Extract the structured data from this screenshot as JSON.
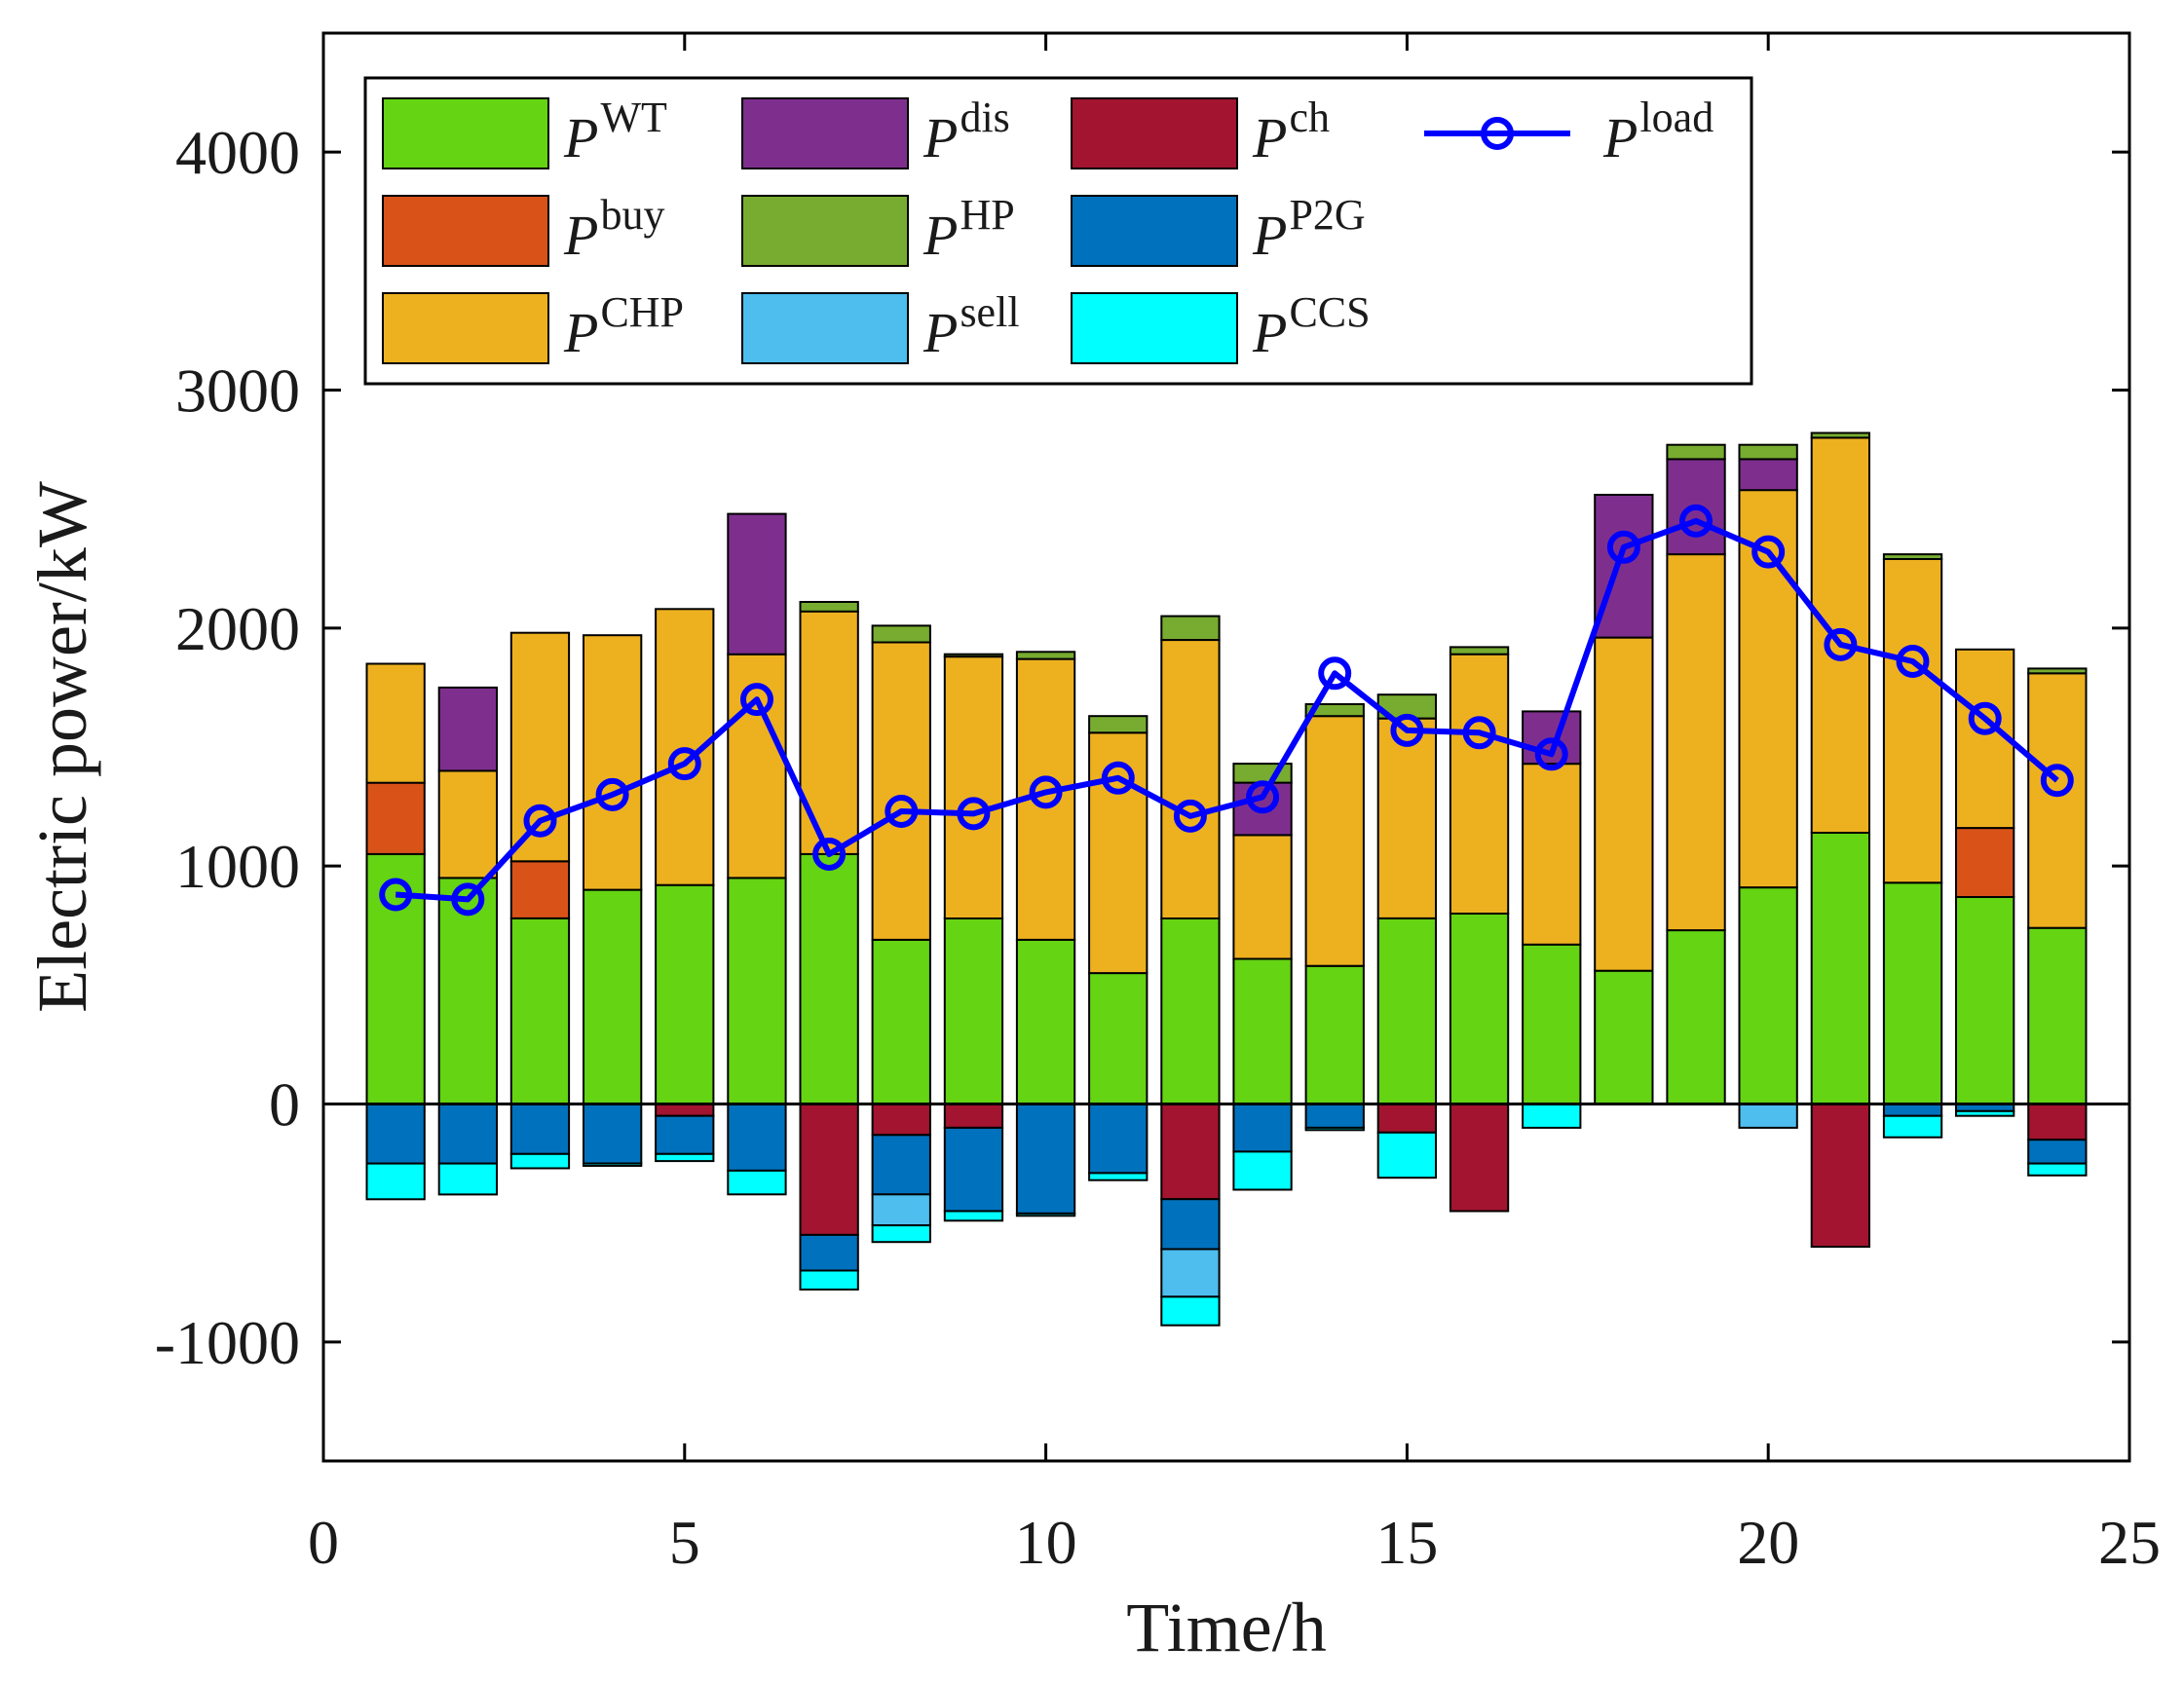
{
  "chart_data": {
    "type": "bar",
    "stacked": true,
    "xlabel": "Time/h",
    "ylabel": "Electric power/kW",
    "xlim": [
      0,
      25
    ],
    "ylim": [
      -1500,
      4500
    ],
    "xticks": [
      0,
      5,
      10,
      15,
      20,
      25
    ],
    "yticks": [
      -1000,
      0,
      1000,
      2000,
      3000,
      4000
    ],
    "grid": false,
    "legend_position": "top-left",
    "categories": [
      1,
      2,
      3,
      4,
      5,
      6,
      7,
      8,
      9,
      10,
      11,
      12,
      13,
      14,
      15,
      16,
      17,
      18,
      19,
      20,
      21,
      22,
      23,
      24
    ],
    "series": [
      {
        "key": "WT",
        "name": "P",
        "sup": "WT",
        "color": "#64D413",
        "position": "positive",
        "values": [
          1050,
          950,
          780,
          900,
          920,
          950,
          1050,
          690,
          780,
          690,
          550,
          780,
          610,
          580,
          780,
          800,
          670,
          560,
          730,
          910,
          1140,
          930,
          870,
          740
        ]
      },
      {
        "key": "buy",
        "name": "P",
        "sup": "buy",
        "color": "#D95319",
        "position": "positive",
        "values": [
          300,
          0,
          240,
          0,
          0,
          0,
          0,
          0,
          0,
          0,
          0,
          0,
          0,
          0,
          0,
          0,
          0,
          0,
          0,
          0,
          0,
          0,
          290,
          0
        ]
      },
      {
        "key": "CHP",
        "name": "P",
        "sup": "CHP",
        "color": "#EDB120",
        "position": "positive",
        "values": [
          500,
          450,
          960,
          1070,
          1160,
          940,
          1020,
          1250,
          1100,
          1180,
          1010,
          1170,
          520,
          1050,
          840,
          1090,
          760,
          1400,
          1580,
          1670,
          1660,
          1360,
          750,
          1070
        ]
      },
      {
        "key": "dis",
        "name": "P",
        "sup": "dis",
        "color": "#7E2F8E",
        "position": "positive",
        "values": [
          0,
          350,
          0,
          0,
          0,
          590,
          0,
          0,
          0,
          0,
          0,
          0,
          220,
          0,
          0,
          0,
          220,
          600,
          400,
          130,
          0,
          0,
          0,
          0
        ]
      },
      {
        "key": "HP",
        "name": "P",
        "sup": "HP",
        "color": "#77AC30",
        "position": "positive",
        "values": [
          0,
          0,
          0,
          0,
          0,
          0,
          40,
          70,
          10,
          30,
          70,
          100,
          80,
          50,
          100,
          30,
          0,
          0,
          60,
          60,
          20,
          20,
          0,
          20
        ]
      },
      {
        "key": "ch",
        "name": "P",
        "sup": "ch",
        "color": "#A2142F",
        "position": "negative",
        "values": [
          0,
          0,
          0,
          0,
          50,
          0,
          550,
          130,
          100,
          0,
          0,
          400,
          0,
          0,
          120,
          450,
          0,
          0,
          0,
          0,
          600,
          0,
          0,
          150
        ]
      },
      {
        "key": "P2G",
        "name": "P",
        "sup": "P2G",
        "color": "#0072BD",
        "position": "negative",
        "values": [
          250,
          250,
          210,
          250,
          160,
          280,
          150,
          250,
          350,
          460,
          290,
          210,
          200,
          100,
          0,
          0,
          0,
          0,
          0,
          0,
          0,
          50,
          30,
          100
        ]
      },
      {
        "key": "sell",
        "name": "P",
        "sup": "sell",
        "color": "#4DBEEE",
        "position": "negative",
        "values": [
          0,
          0,
          0,
          0,
          0,
          0,
          0,
          130,
          0,
          0,
          0,
          200,
          0,
          0,
          0,
          0,
          0,
          0,
          0,
          100,
          0,
          0,
          0,
          0
        ]
      },
      {
        "key": "CCS",
        "name": "P",
        "sup": "CCS",
        "color": "#00FFFF",
        "position": "negative",
        "values": [
          150,
          130,
          60,
          10,
          30,
          100,
          80,
          70,
          40,
          10,
          30,
          120,
          160,
          10,
          190,
          0,
          100,
          0,
          0,
          0,
          0,
          90,
          20,
          50
        ]
      }
    ],
    "line": {
      "name": "P",
      "sup": "load",
      "color": "#0000FF",
      "marker": "circle",
      "values": [
        880,
        860,
        1190,
        1300,
        1430,
        1700,
        1050,
        1230,
        1220,
        1310,
        1370,
        1210,
        1290,
        1810,
        1570,
        1560,
        1470,
        2340,
        2450,
        2320,
        1930,
        1860,
        1620,
        1360
      ]
    }
  }
}
